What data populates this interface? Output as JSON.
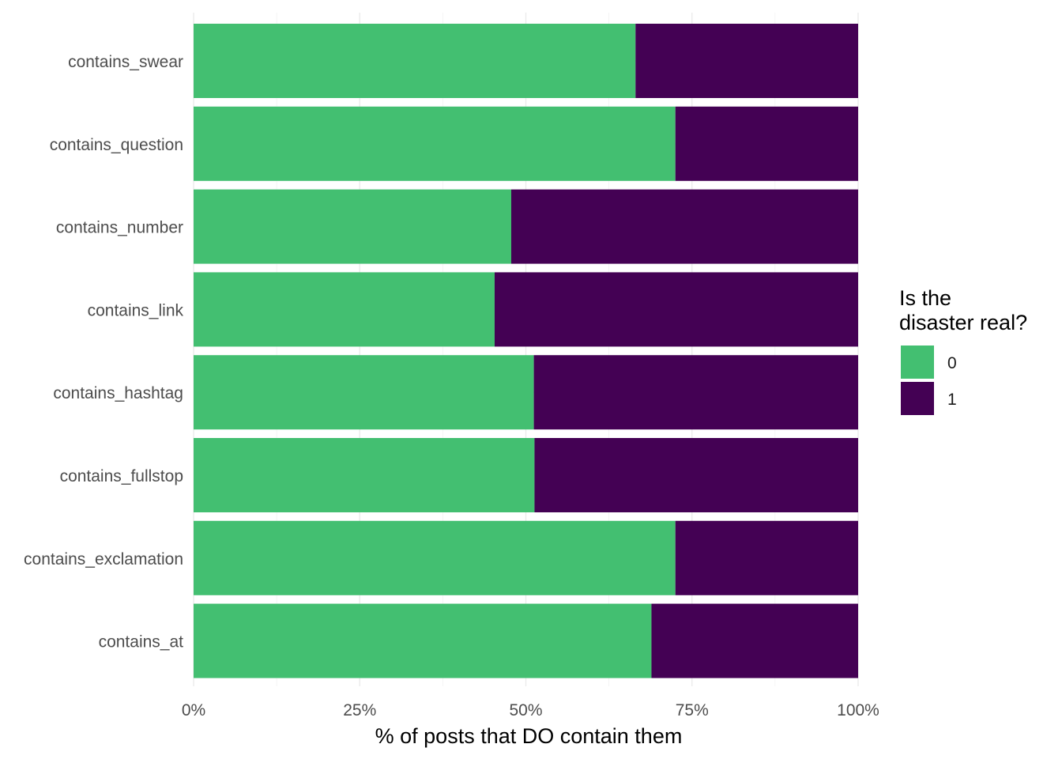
{
  "chart_data": {
    "type": "bar",
    "orientation": "horizontal",
    "stacked": true,
    "categories": [
      "contains_swear",
      "contains_question",
      "contains_number",
      "contains_link",
      "contains_hashtag",
      "contains_fullstop",
      "contains_exclamation",
      "contains_at"
    ],
    "series": [
      {
        "name": "0",
        "color": "#43BF71",
        "values": [
          66.5,
          72.5,
          47.8,
          45.3,
          51.2,
          51.3,
          72.5,
          68.9
        ]
      },
      {
        "name": "1",
        "color": "#440154",
        "values": [
          33.5,
          27.5,
          52.2,
          54.7,
          48.8,
          48.7,
          27.5,
          31.1
        ]
      }
    ],
    "xlabel": "% of posts that DO contain them",
    "ylabel": "",
    "xlim": [
      0,
      100
    ],
    "xticks": [
      "0%",
      "25%",
      "50%",
      "75%",
      "100%"
    ],
    "xtick_values": [
      0,
      25,
      50,
      75,
      100
    ],
    "grid": true,
    "legend": {
      "title_lines": [
        "Is the",
        "disaster real?"
      ],
      "position": "right",
      "items": [
        "0",
        "1"
      ]
    }
  }
}
